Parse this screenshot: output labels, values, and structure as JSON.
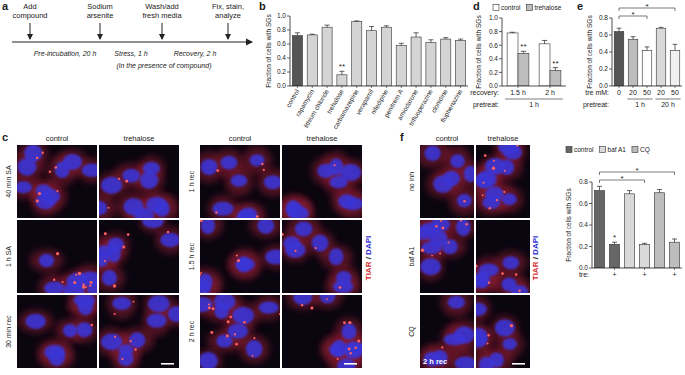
{
  "panel_labels": [
    "a",
    "b",
    "c",
    "d",
    "e",
    "f"
  ],
  "diagram": {
    "steps": [
      [
        "Add",
        "compound"
      ],
      [
        "Sodium",
        "arsenite"
      ],
      [
        "Wash/add",
        "fresh media"
      ],
      [
        "Fix, stain,",
        "analyze"
      ]
    ],
    "phases": [
      "Pre-incubation, 20 h",
      "Stress, 1 h",
      "Recovery, 2 h"
    ],
    "note": "(in the presence of compound)"
  },
  "chart_data": [
    {
      "type": "bar",
      "ylabel": "Fraction of cells with SGs",
      "categories": [
        "control",
        "rapamycin",
        "lithium chloride",
        "trehalose",
        "carbamazepine",
        "verapamil",
        "nifedipine",
        "penitrem A",
        "amiodarone",
        "trifluoperazine",
        "clonidine",
        "fluphenazine"
      ],
      "values": [
        0.72,
        0.73,
        0.84,
        0.16,
        0.92,
        0.79,
        0.84,
        0.58,
        0.7,
        0.62,
        0.67,
        0.65
      ],
      "errors": [
        0.04,
        0.01,
        0.03,
        0.05,
        0.01,
        0.06,
        0.02,
        0.03,
        0.06,
        0.04,
        0.02,
        0.02
      ],
      "colors": [
        "#555555",
        "#d4d4d4",
        "#d4d4d4",
        "#d4d4d4",
        "#d4d4d4",
        "#d4d4d4",
        "#d4d4d4",
        "#d4d4d4",
        "#d4d4d4",
        "#d4d4d4",
        "#d4d4d4",
        "#d4d4d4"
      ],
      "annotations": [
        {
          "index": 3,
          "text": "**"
        }
      ],
      "ylim": [
        0,
        1
      ],
      "yticks": [
        {
          "value": 0,
          "label": "0.0"
        },
        0.2,
        0.4,
        0.6,
        0.8,
        {
          "value": 1,
          "label": "1.0"
        }
      ],
      "grid": false
    },
    {
      "type": "bar",
      "ylabel": "Fraction of cells with SGs",
      "categories": [
        "1.5 h",
        "2 h"
      ],
      "category_title": "recovery:",
      "group_title": "pretreat:",
      "groups": [
        {
          "label": "1 h",
          "from": 0,
          "to": 1
        }
      ],
      "series": [
        {
          "name": "control",
          "color": "#ffffff",
          "values": [
            0.78,
            0.62
          ],
          "errors": [
            0.01,
            0.05
          ]
        },
        {
          "name": "trehalose",
          "color": "#bdbdbd",
          "values": [
            0.48,
            0.23
          ],
          "errors": [
            0.03,
            0.04
          ],
          "annotations": [
            {
              "index": 0,
              "text": "**"
            },
            {
              "index": 1,
              "text": "**"
            }
          ]
        }
      ],
      "legend": "top",
      "ylim": [
        0,
        1
      ],
      "yticks": [
        {
          "value": 0,
          "label": "0.0"
        },
        0.2,
        0.4,
        0.6,
        0.8,
        {
          "value": 1,
          "label": "1.0"
        }
      ],
      "grid": false
    },
    {
      "type": "bar",
      "ylabel": "Fraction of cells with SGs",
      "categories": [
        "0",
        "20",
        "50",
        "20",
        "50"
      ],
      "category_title": "tre mM:",
      "group_title": "pretreat:",
      "groups": [
        {
          "label": "1 h",
          "from": 1,
          "to": 2
        },
        {
          "label": "20 h",
          "from": 3,
          "to": 4
        }
      ],
      "values": [
        0.64,
        0.55,
        0.42,
        0.68,
        0.42
      ],
      "errors": [
        0.04,
        0.03,
        0.04,
        0.01,
        0.07
      ],
      "colors": [
        "#555555",
        "#bdbdbd",
        "#ffffff",
        "#d9d9d9",
        "#f0f0f0"
      ],
      "brackets": [
        {
          "from": 0,
          "to": 2,
          "text": "*"
        },
        {
          "from": 0,
          "to": 4,
          "text": "*"
        }
      ],
      "ylim": [
        0,
        0.8
      ],
      "yticks": [
        {
          "value": 0,
          "label": "0.0"
        },
        0.2,
        0.4,
        0.6,
        0.8
      ],
      "grid": false
    },
    {
      "type": "bar",
      "ylabel": "Fraction of cells with SGs",
      "categories": [
        null,
        "+",
        null,
        "+",
        null,
        "+"
      ],
      "category_title": "tre:",
      "series": [
        {
          "name": "control",
          "color": "#666666",
          "values": [
            0.72,
            0.22,
            null,
            null,
            null,
            null
          ],
          "errors": [
            0.04,
            0.02,
            null,
            null,
            null,
            null
          ],
          "annotations": [
            {
              "index": 1,
              "text": "*"
            }
          ]
        },
        {
          "name": "baf A1",
          "color": "#d9d9d9",
          "values": [
            null,
            null,
            0.69,
            0.22,
            null,
            null
          ],
          "errors": [
            null,
            null,
            0.03,
            0.01,
            null,
            null
          ]
        },
        {
          "name": "CQ",
          "color": "#bdbdbd",
          "values": [
            null,
            null,
            null,
            null,
            0.7,
            0.24
          ],
          "errors": [
            null,
            null,
            null,
            null,
            0.03,
            0.03
          ]
        }
      ],
      "brackets": [
        {
          "from": 0,
          "to": 3,
          "text": "*"
        },
        {
          "from": 0,
          "to": 5,
          "text": "*"
        }
      ],
      "legend": "top",
      "ylim": [
        0,
        0.8
      ],
      "yticks": [
        {
          "value": 0,
          "label": "0.0"
        },
        0.2,
        0.4,
        0.6,
        0.8
      ],
      "grid": false
    }
  ],
  "micrographs": [
    {
      "columns": [
        "control",
        "trehalose"
      ],
      "rows": [
        "40 min SA",
        "1 h SA",
        "30 min rec"
      ]
    },
    {
      "columns": [
        "control",
        "trehalose"
      ],
      "rows": [
        "1 h rec",
        "1.5 h rec",
        "2 h rec"
      ]
    },
    {
      "columns": [
        "control",
        "trehalose"
      ],
      "rows": [
        "no inh",
        "baf A1",
        "CQ"
      ],
      "overlay": "2 h rec"
    }
  ],
  "stain_label": [
    "TIAR",
    " / ",
    "DAPI"
  ]
}
